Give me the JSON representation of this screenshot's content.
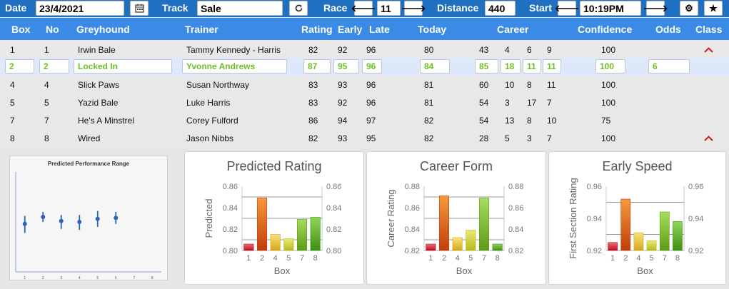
{
  "toolbar": {
    "date_label": "Date",
    "date_value": "23/4/2021",
    "calendar_icon": "calendar-icon",
    "track_label": "Track",
    "track_value": "Sale",
    "refresh_icon": "refresh-icon",
    "race_label": "Race",
    "race_value": "11",
    "distance_label": "Distance",
    "distance_value": "440",
    "start_label": "Start",
    "start_value": "10:19PM",
    "prev_icon": "arrow-left-icon",
    "next_icon": "arrow-right-icon",
    "settings_icon": "gear-icon",
    "favorite_icon": "star-icon"
  },
  "table": {
    "headers": {
      "box": "Box",
      "no": "No",
      "greyhound": "Greyhound",
      "trainer": "Trainer",
      "rating": "Rating",
      "early": "Early",
      "late": "Late",
      "today": "Today",
      "career": "Career",
      "confidence": "Confidence",
      "odds": "Odds",
      "class": "Class"
    },
    "rows": [
      {
        "box": "1",
        "no": "1",
        "greyhound": "Irwin Bale",
        "trainer": "Tammy Kennedy - Harris",
        "rating": "82",
        "early": "92",
        "late": "96",
        "today": "80",
        "career": [
          "43",
          "4",
          "6",
          "9"
        ],
        "confidence": "100",
        "odds": "",
        "caret": "^"
      },
      {
        "box": "2",
        "no": "2",
        "greyhound": "Locked In",
        "trainer": "Yvonne Andrews",
        "rating": "87",
        "early": "95",
        "late": "96",
        "today": "84",
        "career": [
          "85",
          "18",
          "11",
          "11"
        ],
        "confidence": "100",
        "odds": "6",
        "caret": ""
      },
      {
        "box": "4",
        "no": "4",
        "greyhound": "Slick Paws",
        "trainer": "Susan Northway",
        "rating": "83",
        "early": "93",
        "late": "96",
        "today": "81",
        "career": [
          "60",
          "10",
          "8",
          "11"
        ],
        "confidence": "100",
        "odds": "",
        "caret": ""
      },
      {
        "box": "5",
        "no": "5",
        "greyhound": "Yazid Bale",
        "trainer": "Luke Harris",
        "rating": "83",
        "early": "92",
        "late": "96",
        "today": "81",
        "career": [
          "54",
          "3",
          "17",
          "7"
        ],
        "confidence": "100",
        "odds": "",
        "caret": ""
      },
      {
        "box": "7",
        "no": "7",
        "greyhound": "He's A Minstrel",
        "trainer": "Corey Fulford",
        "rating": "86",
        "early": "94",
        "late": "97",
        "today": "82",
        "career": [
          "54",
          "13",
          "8",
          "10"
        ],
        "confidence": "75",
        "odds": "",
        "caret": ""
      },
      {
        "box": "8",
        "no": "8",
        "greyhound": "Wired",
        "trainer": "Jason Nibbs",
        "rating": "82",
        "early": "93",
        "late": "95",
        "today": "82",
        "career": [
          "28",
          "5",
          "3",
          "7"
        ],
        "confidence": "100",
        "odds": "",
        "caret": "^"
      }
    ]
  },
  "colors": {
    "topbar": "#1f70c1",
    "header": "#3a8ae6",
    "selected_text": "#6fbf24",
    "caret": "#d61a1a"
  },
  "chart_data": [
    {
      "type": "scatter",
      "title": "Predicted Performance Range",
      "x": [
        1,
        2,
        3,
        4,
        5,
        6
      ],
      "y": [
        0.48,
        0.55,
        0.51,
        0.5,
        0.53,
        0.54
      ],
      "low": [
        0.39,
        0.5,
        0.43,
        0.42,
        0.45,
        0.48
      ],
      "high": [
        0.56,
        0.6,
        0.57,
        0.57,
        0.61,
        0.6
      ],
      "xticks": [
        "1",
        "2",
        "3",
        "4",
        "5",
        "6",
        "7",
        "8"
      ],
      "xlim": [
        0.5,
        8.5
      ],
      "ylim": [
        0,
        1
      ],
      "grid": false
    },
    {
      "type": "bar",
      "title": "Predicted Rating",
      "xlabel": "Box",
      "ylabel": "Predicted",
      "categories": [
        "1",
        "2",
        "4",
        "5",
        "7",
        "8"
      ],
      "values": [
        0.806,
        0.849,
        0.815,
        0.811,
        0.829,
        0.831
      ],
      "ylim": [
        0.8,
        0.86
      ],
      "yticks": [
        "0.80",
        "0.82",
        "0.84",
        "0.86"
      ],
      "gridlines": [
        0.81,
        0.83,
        0.85
      ]
    },
    {
      "type": "bar",
      "title": "Career Form",
      "xlabel": "Box",
      "ylabel": "Career Rating",
      "categories": [
        "1",
        "2",
        "4",
        "5",
        "7",
        "8"
      ],
      "values": [
        0.826,
        0.871,
        0.832,
        0.839,
        0.869,
        0.826
      ],
      "ylim": [
        0.82,
        0.88
      ],
      "yticks": [
        "0.82",
        "0.84",
        "0.86",
        "0.88"
      ],
      "gridlines": [
        0.83,
        0.85,
        0.87
      ]
    },
    {
      "type": "bar",
      "title": "Early Speed",
      "xlabel": "Box",
      "ylabel": "First Section Rating",
      "categories": [
        "1",
        "2",
        "4",
        "5",
        "7",
        "8"
      ],
      "values": [
        0.925,
        0.952,
        0.931,
        0.926,
        0.944,
        0.938
      ],
      "ylim": [
        0.92,
        0.96
      ],
      "yticks": [
        "0.92",
        "0.94",
        "0.96"
      ],
      "gridlines": [
        0.93,
        0.95
      ]
    }
  ]
}
